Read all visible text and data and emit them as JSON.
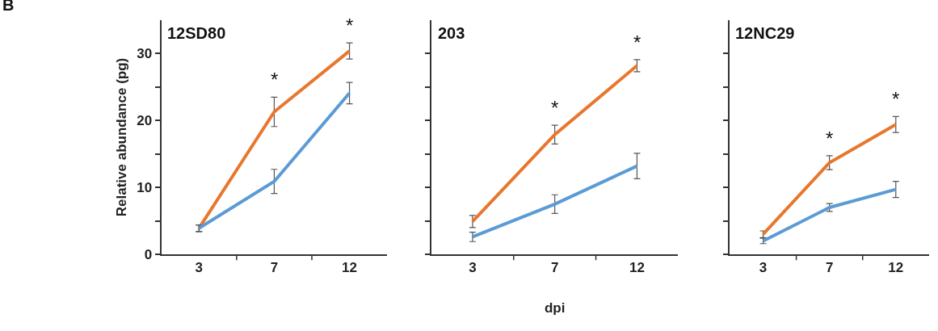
{
  "chart_data": [
    {
      "type": "line",
      "title": "12SD80",
      "ylabel": "Relative abundance (pg)",
      "categories": [
        "3",
        "7",
        "12"
      ],
      "ylim": [
        0,
        35
      ],
      "yticks": [
        0,
        {
          "value": 5,
          "label": null
        },
        10,
        {
          "value": 15,
          "label": null
        },
        20,
        {
          "value": 25,
          "label": null
        },
        30
      ],
      "line_style": "solid",
      "series": [
        {
          "color": "#e8772e",
          "values": [
            3.9,
            21.3,
            30.4
          ],
          "errors": [
            0.5,
            2.2,
            1.2
          ]
        },
        {
          "color": "#5b9bd5",
          "values": [
            3.9,
            10.9,
            24.1
          ],
          "errors": [
            0.5,
            1.8,
            1.6
          ]
        }
      ],
      "annotations": [
        "B",
        "*",
        "*"
      ]
    },
    {
      "type": "line",
      "title": "203",
      "xlabel": "dpi",
      "categories": [
        "3",
        "7",
        "12"
      ],
      "ylim": [
        0,
        35
      ],
      "yticks": [
        0,
        5,
        10,
        15,
        20,
        25,
        30
      ],
      "tick_labels": "x",
      "line_style": "solid",
      "series": [
        {
          "color": "#e8772e",
          "values": [
            4.9,
            17.9,
            28.2
          ],
          "errors": [
            0.9,
            1.4,
            0.9
          ]
        },
        {
          "color": "#5b9bd5",
          "values": [
            2.6,
            7.5,
            13.2
          ],
          "errors": [
            0.7,
            1.4,
            1.9
          ]
        }
      ],
      "annotations": [
        "*",
        "*"
      ]
    },
    {
      "type": "line",
      "title": "12NC29",
      "categories": [
        "3",
        "7",
        "12"
      ],
      "ylim": [
        0,
        35
      ],
      "yticks": [
        0,
        5,
        10,
        15,
        20,
        25,
        30
      ],
      "tick_labels": "x",
      "line_style": "solid",
      "series": [
        {
          "color": "#e8772e",
          "values": [
            3.0,
            13.7,
            19.4
          ],
          "errors": [
            0.5,
            1.05,
            1.2
          ]
        },
        {
          "color": "#5b9bd5",
          "values": [
            2.0,
            7.0,
            9.7
          ],
          "errors": [
            0.4,
            0.6,
            1.2
          ]
        }
      ],
      "annotations": [
        "*",
        "*"
      ]
    }
  ]
}
